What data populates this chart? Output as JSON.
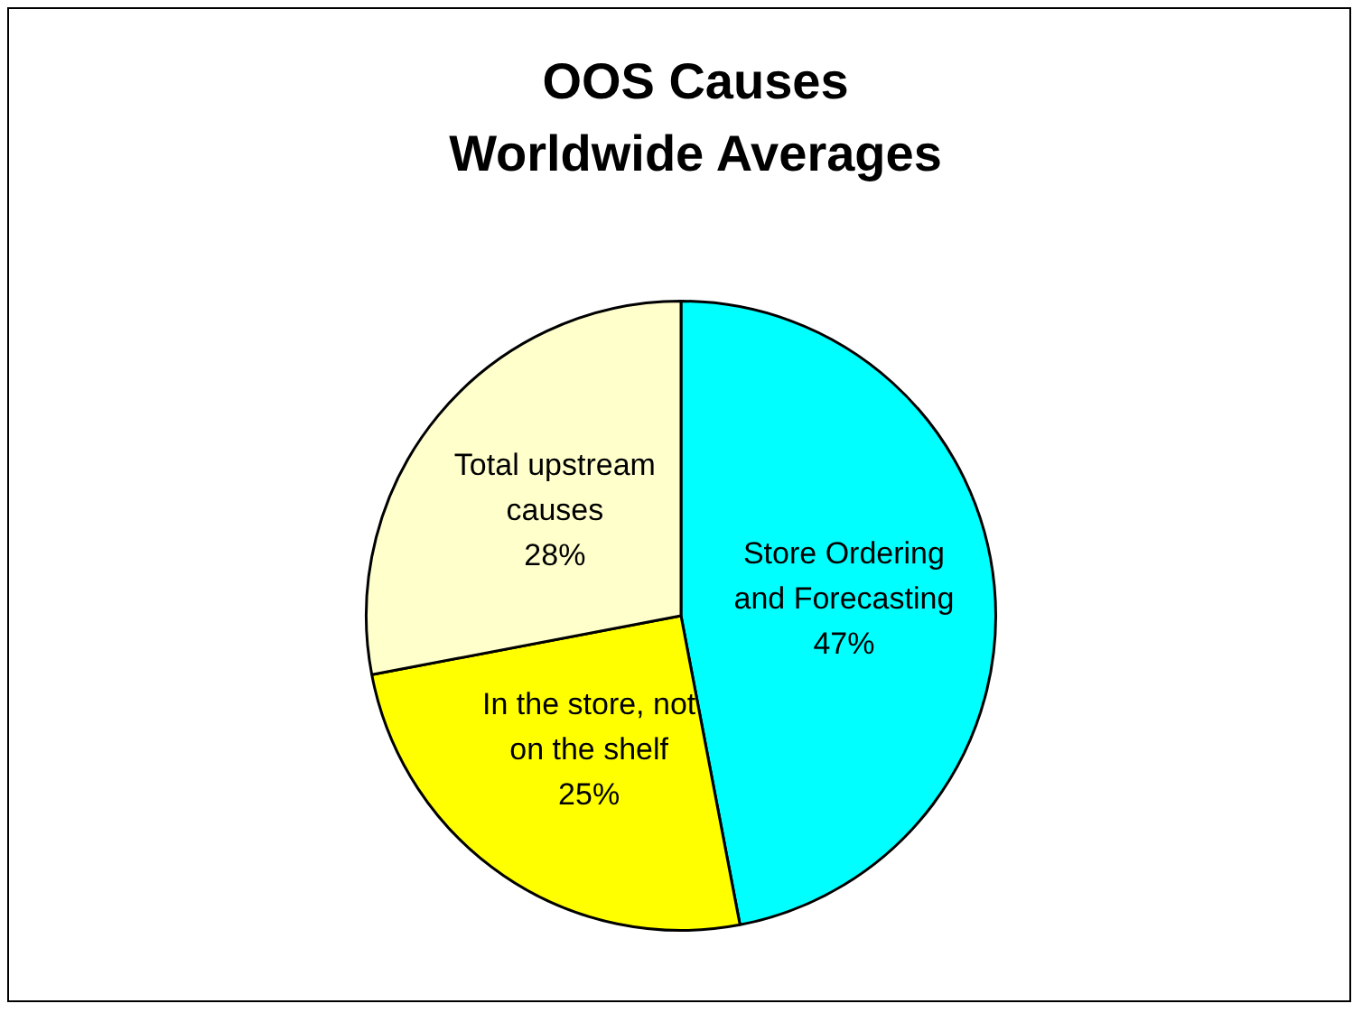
{
  "chart_data": {
    "type": "pie",
    "title": "OOS Causes\nWorldwide Averages",
    "categories": [
      "Store Ordering and Forecasting",
      "In the store, not on the shelf",
      "Total upstream causes"
    ],
    "values": [
      47,
      25,
      28
    ],
    "colors": [
      "#00ffff",
      "#ffff00",
      "#ffffcc"
    ],
    "value_labels": [
      "47%",
      "25%",
      "28%"
    ],
    "legend": false
  }
}
